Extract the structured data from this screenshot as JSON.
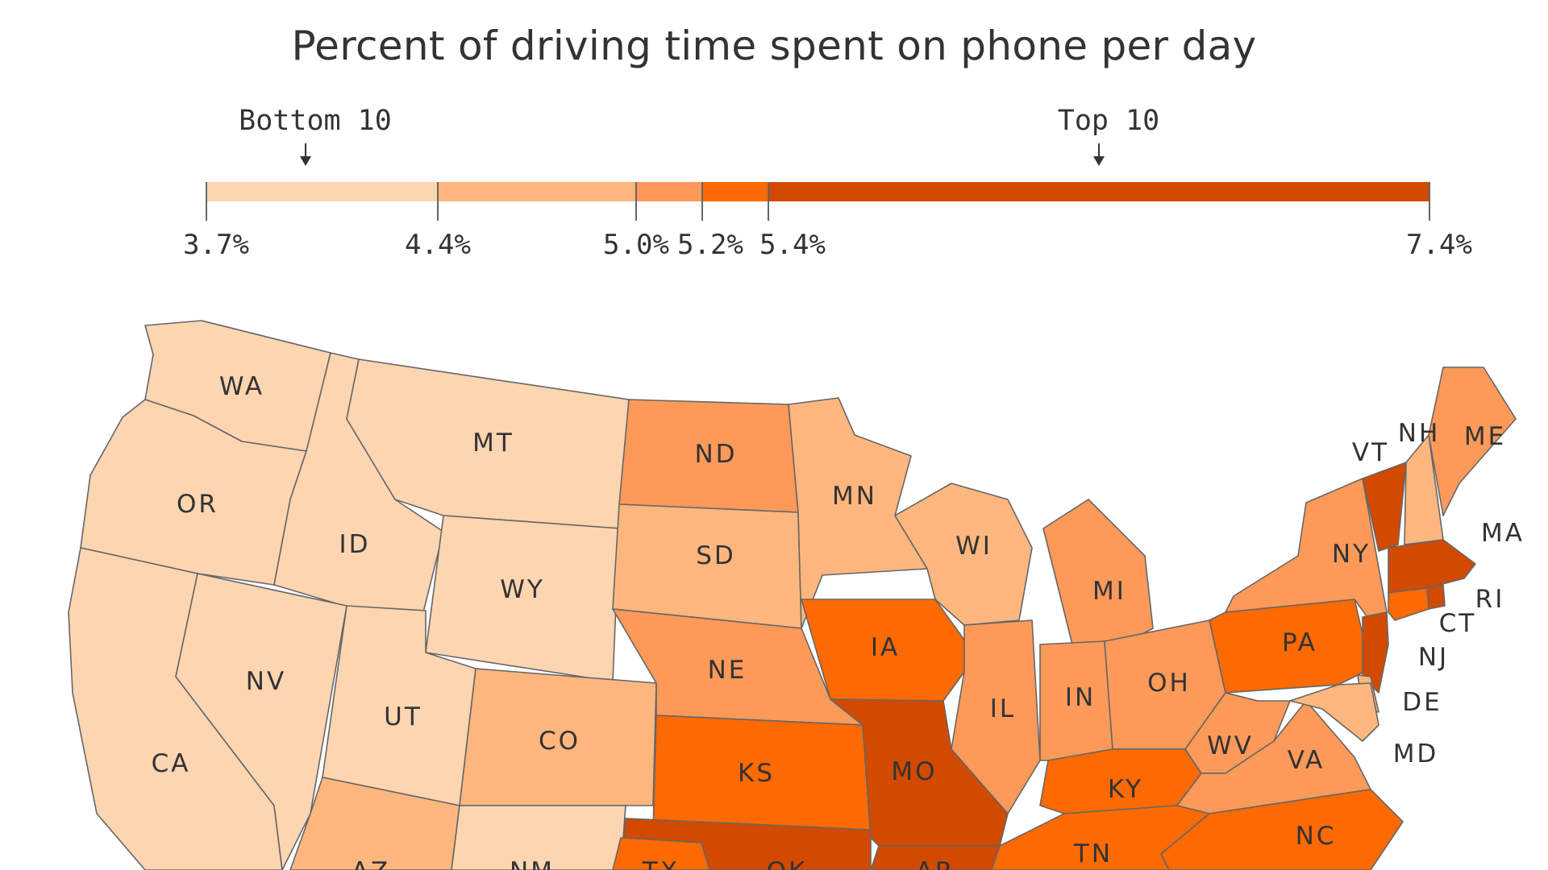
{
  "title": "Percent of driving time spent on phone per day",
  "legend": {
    "markers": [
      {
        "label": "Bottom 10",
        "value": 4.0
      },
      {
        "label": "Top 10",
        "value": 6.4
      }
    ],
    "bins": [
      {
        "from": 3.7,
        "to": 4.4,
        "color": "#fdd5b1"
      },
      {
        "from": 4.4,
        "to": 5.0,
        "color": "#fdb77e"
      },
      {
        "from": 5.0,
        "to": 5.2,
        "color": "#fd9a5a"
      },
      {
        "from": 5.2,
        "to": 5.4,
        "color": "#fd6a02"
      },
      {
        "from": 5.4,
        "to": 7.4,
        "color": "#d14a00"
      }
    ],
    "tick_labels": [
      "3.7%",
      "4.4%",
      "5.0%",
      "5.2%",
      "5.4%",
      "7.4%"
    ],
    "tick_values": [
      3.7,
      4.4,
      5.0,
      5.2,
      5.4,
      7.4
    ]
  },
  "map": {
    "border_color": "#666666",
    "states": [
      {
        "abbr": "WA",
        "bin": 0
      },
      {
        "abbr": "OR",
        "bin": 0
      },
      {
        "abbr": "CA",
        "bin": 0
      },
      {
        "abbr": "ID",
        "bin": 0
      },
      {
        "abbr": "NV",
        "bin": 0
      },
      {
        "abbr": "MT",
        "bin": 0
      },
      {
        "abbr": "WY",
        "bin": 0
      },
      {
        "abbr": "UT",
        "bin": 0
      },
      {
        "abbr": "AZ",
        "bin": 1
      },
      {
        "abbr": "CO",
        "bin": 1
      },
      {
        "abbr": "NM",
        "bin": 0
      },
      {
        "abbr": "ND",
        "bin": 2
      },
      {
        "abbr": "SD",
        "bin": 1
      },
      {
        "abbr": "NE",
        "bin": 2
      },
      {
        "abbr": "KS",
        "bin": 3
      },
      {
        "abbr": "OK",
        "bin": 4
      },
      {
        "abbr": "TX",
        "bin": 3
      },
      {
        "abbr": "MN",
        "bin": 1
      },
      {
        "abbr": "IA",
        "bin": 3
      },
      {
        "abbr": "MO",
        "bin": 4
      },
      {
        "abbr": "AR",
        "bin": 4
      },
      {
        "abbr": "WI",
        "bin": 1
      },
      {
        "abbr": "IL",
        "bin": 2
      },
      {
        "abbr": "MI",
        "bin": 2
      },
      {
        "abbr": "IN",
        "bin": 2
      },
      {
        "abbr": "OH",
        "bin": 2
      },
      {
        "abbr": "KY",
        "bin": 3
      },
      {
        "abbr": "TN",
        "bin": 3
      },
      {
        "abbr": "WV",
        "bin": 2
      },
      {
        "abbr": "VA",
        "bin": 2
      },
      {
        "abbr": "NC",
        "bin": 3
      },
      {
        "abbr": "PA",
        "bin": 3
      },
      {
        "abbr": "NY",
        "bin": 2
      },
      {
        "abbr": "VT",
        "bin": 4
      },
      {
        "abbr": "NH",
        "bin": 1
      },
      {
        "abbr": "ME",
        "bin": 2
      },
      {
        "abbr": "MA",
        "bin": 4
      },
      {
        "abbr": "CT",
        "bin": 3
      },
      {
        "abbr": "RI",
        "bin": 4
      },
      {
        "abbr": "NJ",
        "bin": 4
      },
      {
        "abbr": "DE",
        "bin": 1
      },
      {
        "abbr": "MD",
        "bin": 1
      }
    ]
  }
}
